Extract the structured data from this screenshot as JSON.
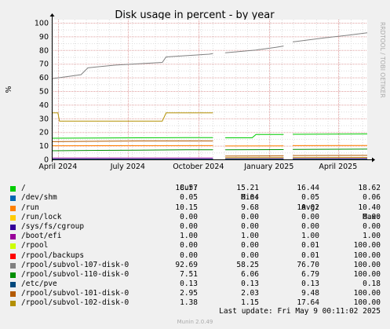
{
  "title": "Disk usage in percent - by year",
  "ylabel": "%",
  "side_label": "RRDTOOL / TOBI OETIKER",
  "x_ticks": [
    "April 2024",
    "July 2024",
    "October 2024",
    "January 2025",
    "April 2025"
  ],
  "y_ticks": [
    "0",
    "10",
    "20",
    "30",
    "40",
    "50",
    "60",
    "70",
    "80",
    "90",
    "100"
  ],
  "legend_headers": {
    "cur": "Cur:",
    "min": "Min:",
    "avg": "Avg:",
    "max": "Max:"
  },
  "legend": [
    {
      "name": "/",
      "color": "#00cc00",
      "cur": "18.57",
      "min": "15.21",
      "avg": "16.44",
      "max": "18.62"
    },
    {
      "name": "/dev/shm",
      "color": "#0066b3",
      "cur": "0.05",
      "min": "0.04",
      "avg": "0.05",
      "max": "0.06"
    },
    {
      "name": "/run",
      "color": "#ff8000",
      "cur": "10.15",
      "min": "9.68",
      "avg": "10.02",
      "max": "10.40"
    },
    {
      "name": "/run/lock",
      "color": "#ffcc00",
      "cur": "0.00",
      "min": "0.00",
      "avg": "0.00",
      "max": "0.00"
    },
    {
      "name": "/sys/fs/cgroup",
      "color": "#330099",
      "cur": "0.00",
      "min": "0.00",
      "avg": "0.00",
      "max": "0.00"
    },
    {
      "name": "/boot/efi",
      "color": "#990099",
      "cur": "1.00",
      "min": "1.00",
      "avg": "1.00",
      "max": "1.00"
    },
    {
      "name": "/rpool",
      "color": "#ccff00",
      "cur": "0.00",
      "min": "0.00",
      "avg": "0.01",
      "max": "100.00"
    },
    {
      "name": "/rpool/backups",
      "color": "#ff0000",
      "cur": "0.00",
      "min": "0.00",
      "avg": "0.01",
      "max": "100.00"
    },
    {
      "name": "/rpool/subvol-107-disk-0",
      "color": "#808080",
      "cur": "92.69",
      "min": "58.25",
      "avg": "76.70",
      "max": "100.00"
    },
    {
      "name": "/rpool/subvol-110-disk-0",
      "color": "#008f00",
      "cur": "7.51",
      "min": "6.06",
      "avg": "6.79",
      "max": "100.00"
    },
    {
      "name": "/etc/pve",
      "color": "#00487d",
      "cur": "0.13",
      "min": "0.13",
      "avg": "0.13",
      "max": "0.18"
    },
    {
      "name": "/rpool/subvol-101-disk-0",
      "color": "#b35a00",
      "cur": "2.95",
      "min": "2.03",
      "avg": "9.48",
      "max": "100.00"
    },
    {
      "name": "/rpool/subvol-102-disk-0",
      "color": "#b38f00",
      "cur": "1.38",
      "min": "1.15",
      "avg": "17.64",
      "max": "100.00"
    }
  ],
  "last_update": "Last update: Fri May  9 00:11:02 2025",
  "footer": "Munin 2.0.49",
  "chart_data": {
    "type": "line",
    "title": "Disk usage in percent - by year",
    "ylabel": "%",
    "ylim": [
      0,
      100
    ],
    "grid": true,
    "x_range": [
      "2024-03-24",
      "2025-05-09"
    ],
    "series": [
      {
        "name": "/",
        "color": "#00cc00",
        "segments": [
          [
            [
              "2024-03-24",
              15.5
            ],
            [
              "2024-07-15",
              15.8
            ],
            [
              "2024-09-15",
              16.0
            ],
            [
              "2024-10-20",
              16.0
            ]
          ],
          [
            [
              "2024-11-05",
              15.8
            ],
            [
              "2024-12-10",
              15.8
            ],
            [
              "2024-12-15",
              18.2
            ],
            [
              "2025-01-20",
              18.3
            ]
          ],
          [
            [
              "2025-02-01",
              18.4
            ],
            [
              "2025-05-09",
              18.6
            ]
          ]
        ]
      },
      {
        "name": "/dev/shm",
        "color": "#0066b3",
        "segments": [
          [
            [
              "2024-03-24",
              0.05
            ],
            [
              "2024-10-20",
              0.05
            ]
          ],
          [
            [
              "2024-11-05",
              0.05
            ],
            [
              "2025-01-20",
              0.05
            ]
          ],
          [
            [
              "2025-02-01",
              0.05
            ],
            [
              "2025-05-09",
              0.05
            ]
          ]
        ]
      },
      {
        "name": "/run",
        "color": "#ff8000",
        "segments": [
          [
            [
              "2024-03-24",
              10.0
            ],
            [
              "2024-10-20",
              10.1
            ]
          ],
          [
            [
              "2024-11-05",
              9.8
            ],
            [
              "2025-01-20",
              9.9
            ]
          ],
          [
            [
              "2025-02-01",
              10.1
            ],
            [
              "2025-05-09",
              10.2
            ]
          ]
        ]
      },
      {
        "name": "/boot/efi",
        "color": "#990099",
        "segments": [
          [
            [
              "2024-03-24",
              1.0
            ],
            [
              "2024-10-20",
              1.0
            ]
          ],
          [
            [
              "2024-11-05",
              1.0
            ],
            [
              "2025-01-20",
              1.0
            ]
          ],
          [
            [
              "2025-02-01",
              1.0
            ],
            [
              "2025-05-09",
              1.0
            ]
          ]
        ]
      },
      {
        "name": "/rpool/subvol-107-disk-0",
        "color": "#808080",
        "segments": [
          [
            [
              "2024-03-24",
              59
            ],
            [
              "2024-05-01",
              62
            ],
            [
              "2024-05-10",
              67
            ],
            [
              "2024-06-15",
              69
            ],
            [
              "2024-08-15",
              71
            ],
            [
              "2024-08-20",
              75
            ],
            [
              "2024-10-15",
              77
            ],
            [
              "2024-10-20",
              77.5
            ]
          ],
          [
            [
              "2024-11-05",
              78
            ],
            [
              "2024-12-15",
              80
            ],
            [
              "2025-01-10",
              82
            ],
            [
              "2025-01-20",
              83
            ]
          ],
          [
            [
              "2025-02-01",
              86
            ],
            [
              "2025-03-15",
              89
            ],
            [
              "2025-04-15",
              91
            ],
            [
              "2025-05-09",
              92.7
            ]
          ]
        ]
      },
      {
        "name": "/rpool/subvol-110-disk-0",
        "color": "#008f00",
        "segments": [
          [
            [
              "2024-03-24",
              6.3
            ],
            [
              "2024-07-15",
              6.8
            ],
            [
              "2024-09-15",
              7.0
            ],
            [
              "2024-10-20",
              7.0
            ]
          ],
          [
            [
              "2024-11-05",
              7.0
            ],
            [
              "2025-01-20",
              7.2
            ]
          ],
          [
            [
              "2025-02-01",
              7.3
            ],
            [
              "2025-05-09",
              7.5
            ]
          ]
        ]
      },
      {
        "name": "/etc/pve",
        "color": "#00487d",
        "segments": [
          [
            [
              "2024-03-24",
              0.13
            ],
            [
              "2024-10-20",
              0.13
            ]
          ],
          [
            [
              "2024-11-05",
              0.13
            ],
            [
              "2025-01-20",
              0.13
            ]
          ],
          [
            [
              "2025-02-01",
              0.13
            ],
            [
              "2025-05-09",
              0.13
            ]
          ]
        ]
      },
      {
        "name": "/rpool/subvol-101-disk-0",
        "color": "#b35a00",
        "segments": [
          [
            [
              "2024-03-24",
              13.0
            ],
            [
              "2024-07-15",
              13.5
            ],
            [
              "2024-10-20",
              13.5
            ]
          ],
          [
            [
              "2024-11-05",
              2.5
            ],
            [
              "2025-01-20",
              2.6
            ]
          ],
          [
            [
              "2025-02-01",
              2.8
            ],
            [
              "2025-05-09",
              2.95
            ]
          ]
        ]
      },
      {
        "name": "/rpool/subvol-102-disk-0",
        "color": "#b38f00",
        "segments": [
          [
            [
              "2024-03-24",
              34
            ],
            [
              "2024-04-01",
              34
            ],
            [
              "2024-04-03",
              28
            ],
            [
              "2024-08-15",
              28
            ],
            [
              "2024-08-20",
              34
            ],
            [
              "2024-10-20",
              34
            ]
          ],
          [
            [
              "2024-11-05",
              1.2
            ],
            [
              "2025-01-20",
              1.3
            ]
          ],
          [
            [
              "2025-02-01",
              1.3
            ],
            [
              "2025-05-09",
              1.38
            ]
          ]
        ]
      }
    ]
  }
}
